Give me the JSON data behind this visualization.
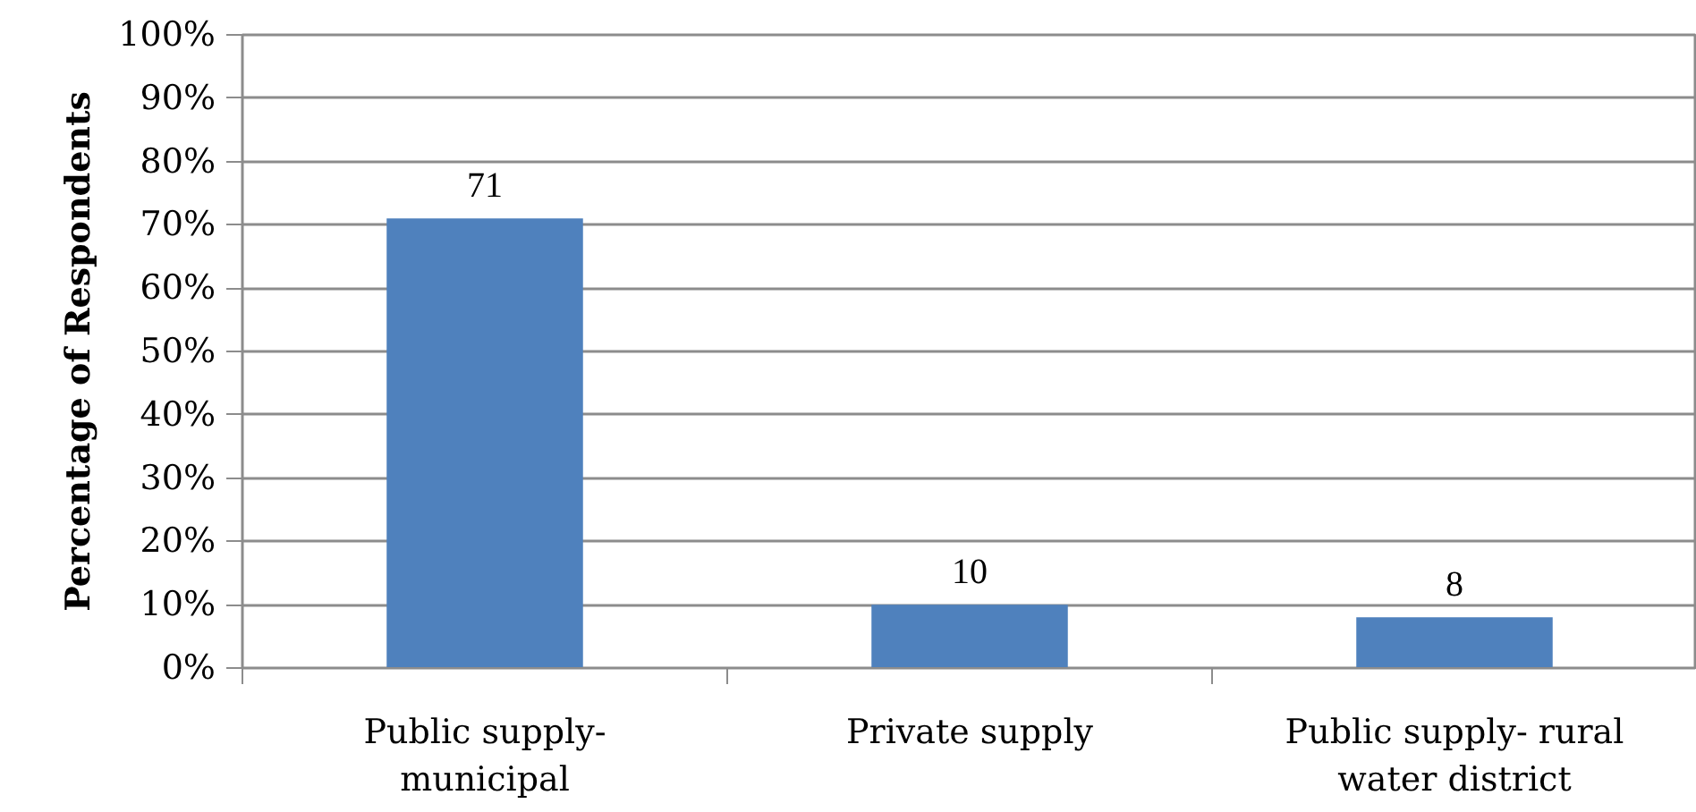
{
  "chart_data": {
    "type": "bar",
    "ylabel": "Percentage of Respondents",
    "categories": [
      "Public supply- municipal",
      "Private supply",
      "Public supply- rural water district"
    ],
    "values": [
      71,
      10,
      8
    ],
    "color": "#4f81bd",
    "ylim": [
      0,
      100
    ],
    "yticks": [
      {
        "value": 0,
        "label": "0%"
      },
      {
        "value": 10,
        "label": "10%"
      },
      {
        "value": 20,
        "label": "20%"
      },
      {
        "value": 30,
        "label": "30%"
      },
      {
        "value": 40,
        "label": "40%"
      },
      {
        "value": 50,
        "label": "50%"
      },
      {
        "value": 60,
        "label": "60%"
      },
      {
        "value": 70,
        "label": "70%"
      },
      {
        "value": 80,
        "label": "80%"
      },
      {
        "value": 90,
        "label": "90%"
      },
      {
        "value": 100,
        "label": "100%"
      }
    ],
    "grid": "y",
    "data_labels": true
  }
}
